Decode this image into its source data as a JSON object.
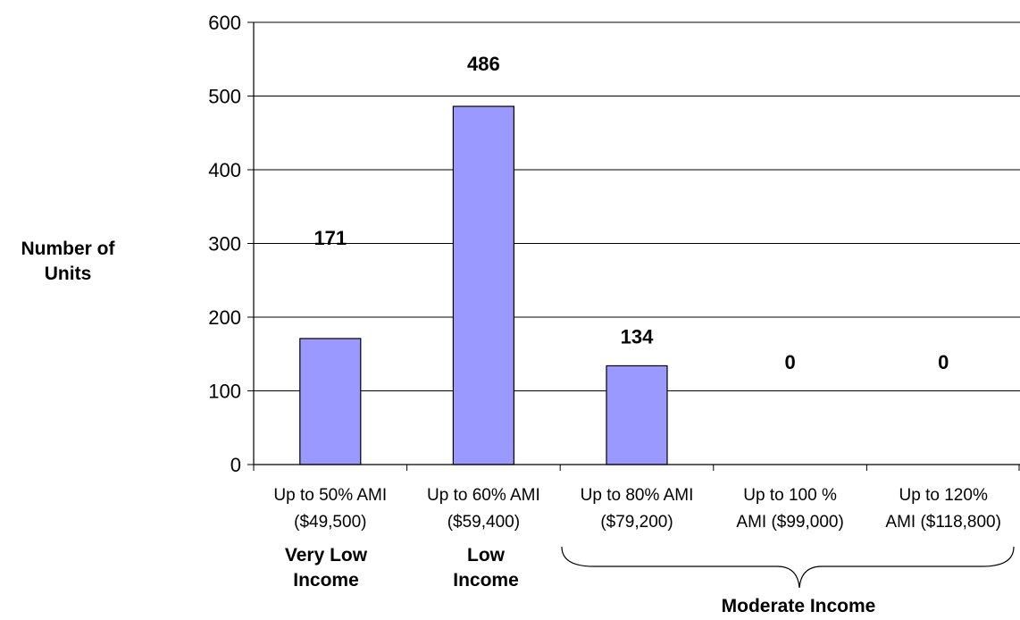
{
  "chart_data": {
    "type": "bar",
    "title": "",
    "ylabel": "Number of Units",
    "xlabel": "",
    "ylim": [
      0,
      600
    ],
    "yticks": [
      0,
      100,
      200,
      300,
      400,
      500,
      600
    ],
    "grid": true,
    "categories": [
      "Up to 50% AMI ($49,500)",
      "Up to 60% AMI ($59,400)",
      "Up to 80% AMI ($79,200)",
      "Up to 100 % AMI ($99,000)",
      "Up to 120% AMI ($118,800)"
    ],
    "values": [
      171,
      486,
      134,
      0,
      0
    ],
    "bar_color": "#9999ff",
    "group_labels": [
      {
        "text": "Very Low Income",
        "categories": [
          0
        ]
      },
      {
        "text": "Low Income",
        "categories": [
          1
        ]
      },
      {
        "text": "Moderate Income",
        "categories": [
          2,
          3,
          4
        ]
      }
    ]
  },
  "ylabel_lines": [
    "Number of",
    "Units"
  ],
  "category_lines": [
    [
      "Up to 50% AMI",
      "($49,500)"
    ],
    [
      "Up to 60% AMI",
      "($59,400)"
    ],
    [
      "Up to 80% AMI",
      "($79,200)"
    ],
    [
      "Up to 100 %",
      "AMI ($99,000)"
    ],
    [
      "Up to 120%",
      "AMI ($118,800)"
    ]
  ],
  "group_lines": {
    "very_low": [
      "Very Low",
      "Income"
    ],
    "low": [
      "Low",
      "Income"
    ],
    "moderate": "Moderate Income"
  },
  "data_labels": [
    "171",
    "486",
    "134",
    "0",
    "0"
  ]
}
